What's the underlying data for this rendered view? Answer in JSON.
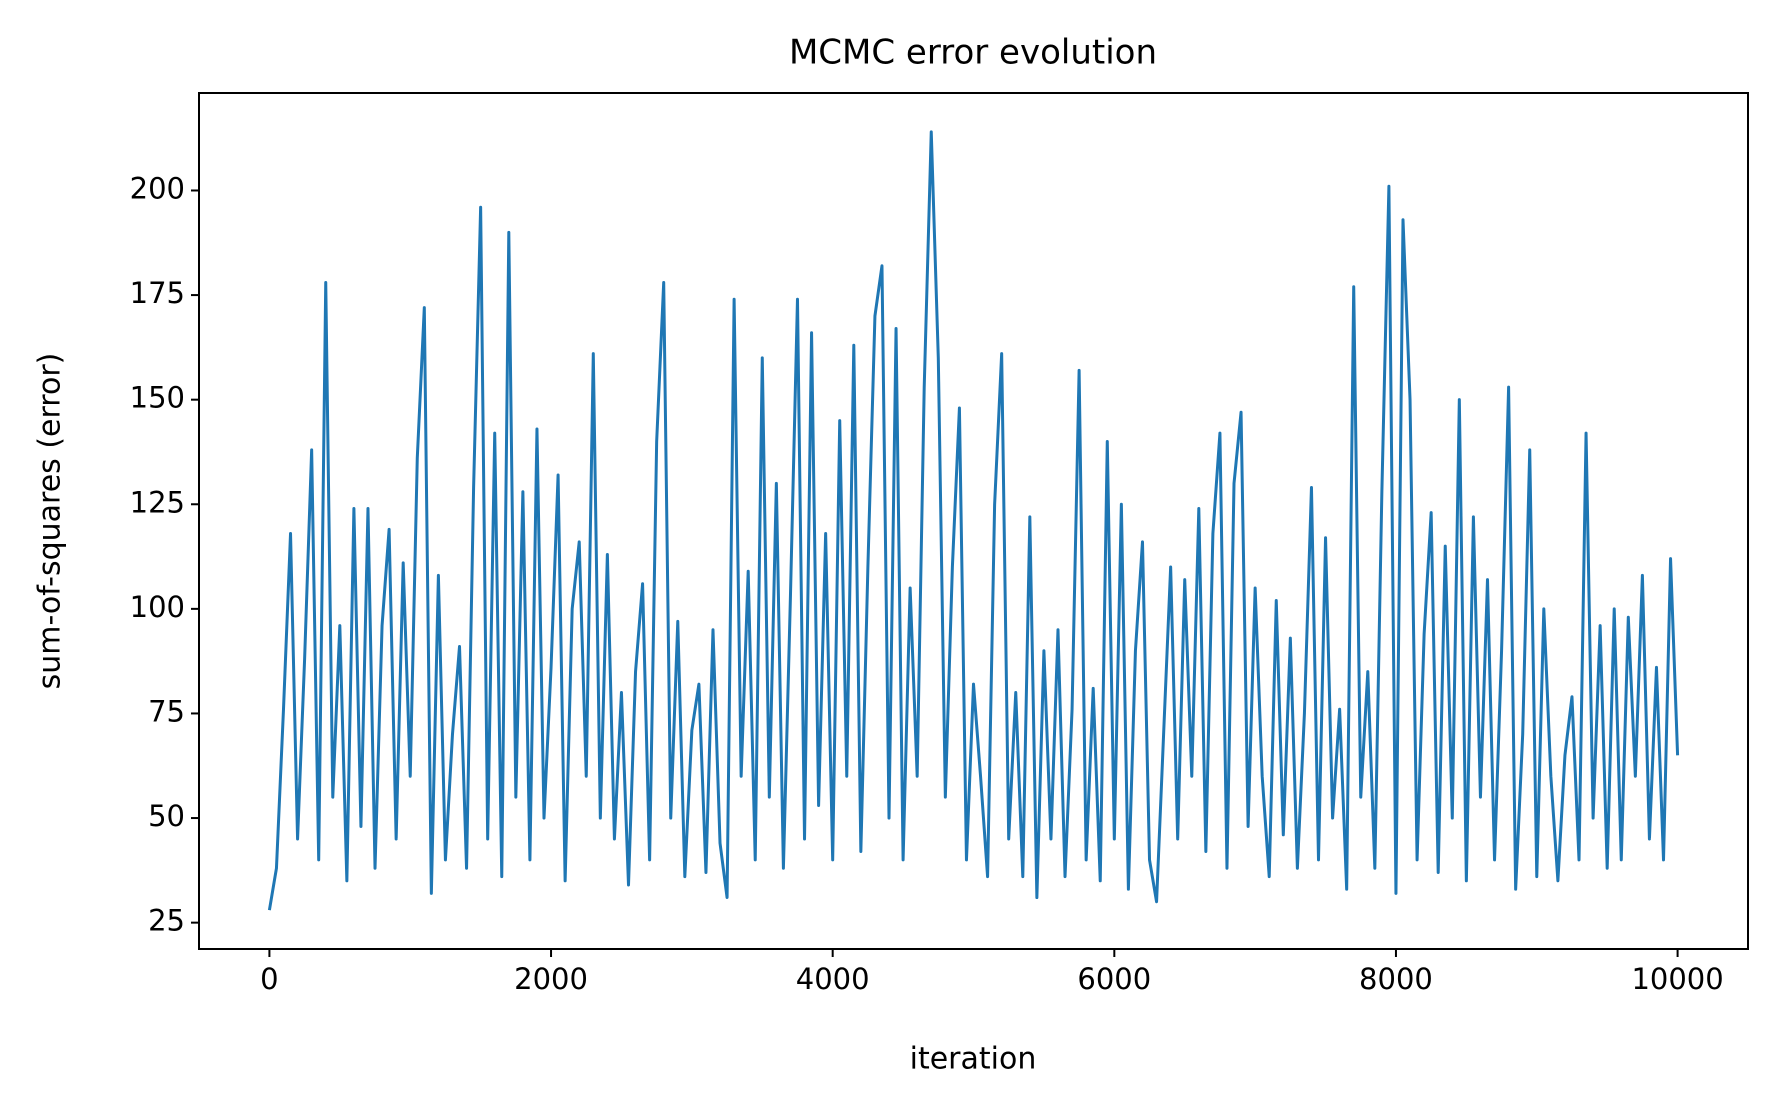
{
  "chart_data": {
    "type": "line",
    "title": "MCMC error evolution",
    "x_label": "iteration",
    "y_label": "sum-of-squares (error)",
    "xlim": [
      -500,
      10500
    ],
    "ylim": [
      18.7,
      223.3
    ],
    "xticks": [
      0,
      2000,
      4000,
      6000,
      8000,
      10000
    ],
    "yticks": [
      25,
      50,
      75,
      100,
      125,
      150,
      175,
      200
    ],
    "grid": false,
    "x": [
      0,
      50,
      100,
      150,
      200,
      250,
      300,
      350,
      400,
      450,
      500,
      550,
      600,
      650,
      700,
      750,
      800,
      850,
      900,
      950,
      1000,
      1050,
      1100,
      1150,
      1200,
      1250,
      1300,
      1350,
      1400,
      1450,
      1500,
      1550,
      1600,
      1650,
      1700,
      1750,
      1800,
      1850,
      1900,
      1950,
      2000,
      2050,
      2100,
      2150,
      2200,
      2250,
      2300,
      2350,
      2400,
      2450,
      2500,
      2550,
      2600,
      2650,
      2700,
      2750,
      2800,
      2850,
      2900,
      2950,
      3000,
      3050,
      3100,
      3150,
      3200,
      3250,
      3300,
      3350,
      3400,
      3450,
      3500,
      3550,
      3600,
      3650,
      3700,
      3750,
      3800,
      3850,
      3900,
      3950,
      4000,
      4050,
      4100,
      4150,
      4200,
      4250,
      4300,
      4350,
      4400,
      4450,
      4500,
      4550,
      4600,
      4650,
      4700,
      4750,
      4800,
      4850,
      4900,
      4950,
      5000,
      5050,
      5100,
      5150,
      5200,
      5250,
      5300,
      5350,
      5400,
      5450,
      5500,
      5550,
      5600,
      5650,
      5700,
      5750,
      5800,
      5850,
      5900,
      5950,
      6000,
      6050,
      6100,
      6150,
      6200,
      6250,
      6300,
      6350,
      6400,
      6450,
      6500,
      6550,
      6600,
      6650,
      6700,
      6750,
      6800,
      6850,
      6900,
      6950,
      7000,
      7050,
      7100,
      7150,
      7200,
      7250,
      7300,
      7350,
      7400,
      7450,
      7500,
      7550,
      7600,
      7650,
      7700,
      7750,
      7800,
      7850,
      7900,
      7950,
      8000,
      8050,
      8100,
      8150,
      8200,
      8250,
      8300,
      8350,
      8400,
      8450,
      8500,
      8550,
      8600,
      8650,
      8700,
      8750,
      8800,
      8850,
      8900,
      8950,
      9000,
      9050,
      9100,
      9150,
      9200,
      9250,
      9300,
      9350,
      9400,
      9450,
      9500,
      9550,
      9600,
      9650,
      9700,
      9750,
      9800,
      9850,
      9900,
      9950,
      10000
    ],
    "series": [
      {
        "color": "#1f77b4",
        "values": [
          28,
          38,
          76,
          118,
          45,
          88,
          138,
          40,
          178,
          55,
          96,
          35,
          124,
          48,
          124,
          38,
          96,
          119,
          45,
          111,
          60,
          136,
          172,
          32,
          108,
          40,
          70,
          91,
          38,
          129,
          196,
          45,
          142,
          36,
          190,
          55,
          128,
          40,
          143,
          50,
          86,
          132,
          35,
          100,
          116,
          60,
          161,
          50,
          113,
          45,
          80,
          34,
          85,
          106,
          40,
          140,
          178,
          50,
          97,
          36,
          71,
          82,
          37,
          95,
          44,
          31,
          174,
          60,
          109,
          40,
          160,
          55,
          130,
          38,
          103,
          174,
          45,
          166,
          53,
          118,
          40,
          145,
          60,
          163,
          42,
          110,
          170,
          182,
          50,
          167,
          40,
          105,
          60,
          153,
          214,
          160,
          55,
          110,
          148,
          40,
          82,
          60,
          36,
          125,
          161,
          45,
          80,
          36,
          122,
          31,
          90,
          45,
          95,
          36,
          76,
          157,
          40,
          81,
          35,
          140,
          45,
          125,
          33,
          90,
          116,
          40,
          30,
          70,
          110,
          45,
          107,
          60,
          124,
          42,
          118,
          142,
          38,
          130,
          147,
          48,
          105,
          60,
          36,
          102,
          46,
          93,
          38,
          75,
          129,
          40,
          117,
          50,
          76,
          33,
          177,
          55,
          85,
          38,
          128,
          201,
          32,
          193,
          150,
          40,
          94,
          123,
          37,
          115,
          50,
          150,
          35,
          122,
          55,
          107,
          40,
          90,
          153,
          33,
          70,
          138,
          36,
          100,
          60,
          35,
          65,
          79,
          40,
          142,
          50,
          96,
          38,
          100,
          40,
          98,
          60,
          108,
          45,
          86,
          40,
          112,
          65
        ]
      }
    ]
  }
}
